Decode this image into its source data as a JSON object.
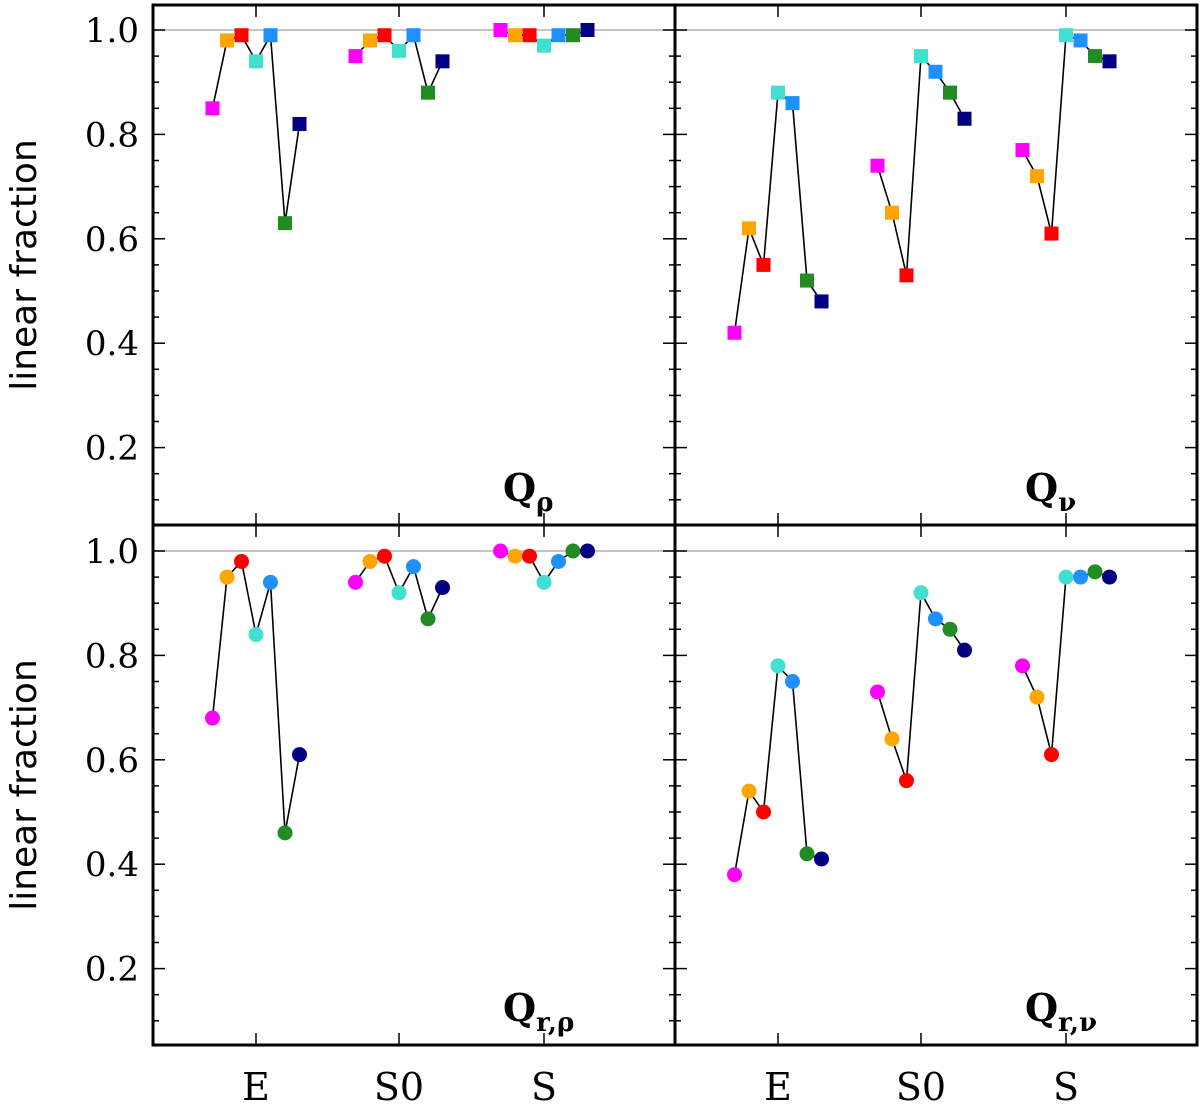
{
  "chart_data": [
    {
      "type": "scatter",
      "panel": "top-left",
      "label_main": "Q",
      "label_sub": "ρ",
      "ylabel": "linear fraction",
      "ylim": [
        0.05,
        1.05
      ],
      "yticks": [
        "0.2",
        "0.4",
        "0.6",
        "0.8",
        "1.0"
      ],
      "reference_line": 1.0,
      "categories": [
        "E",
        "S0",
        "S"
      ],
      "marker": "square",
      "series": [
        {
          "name": "E",
          "values": [
            0.85,
            0.98,
            0.99,
            0.94,
            0.99,
            0.63,
            0.82
          ]
        },
        {
          "name": "S0",
          "values": [
            0.95,
            0.98,
            0.99,
            0.96,
            0.99,
            0.88,
            0.94
          ]
        },
        {
          "name": "S",
          "values": [
            1.0,
            0.99,
            0.99,
            0.97,
            0.99,
            0.99,
            1.0
          ]
        }
      ]
    },
    {
      "type": "scatter",
      "panel": "top-right",
      "label_main": "Q",
      "label_sub": "ν",
      "ylim": [
        0.05,
        1.05
      ],
      "reference_line": 1.0,
      "categories": [
        "E",
        "S0",
        "S"
      ],
      "marker": "square",
      "series": [
        {
          "name": "E",
          "values": [
            0.42,
            0.62,
            0.55,
            0.88,
            0.86,
            0.52,
            0.48
          ]
        },
        {
          "name": "S0",
          "values": [
            0.74,
            0.65,
            0.53,
            0.95,
            0.92,
            0.88,
            0.83
          ]
        },
        {
          "name": "S",
          "values": [
            0.77,
            0.72,
            0.61,
            0.99,
            0.98,
            0.95,
            0.94
          ]
        }
      ]
    },
    {
      "type": "scatter",
      "panel": "bottom-left",
      "label_main": "Q",
      "label_sub": "r,ρ",
      "ylabel": "linear fraction",
      "ylim": [
        0.05,
        1.05
      ],
      "yticks": [
        "0.2",
        "0.4",
        "0.6",
        "0.8",
        "1.0"
      ],
      "reference_line": 1.0,
      "categories": [
        "E",
        "S0",
        "S"
      ],
      "marker": "circle",
      "series": [
        {
          "name": "E",
          "values": [
            0.68,
            0.95,
            0.98,
            0.84,
            0.94,
            0.46,
            0.61
          ]
        },
        {
          "name": "S0",
          "values": [
            0.94,
            0.98,
            0.99,
            0.92,
            0.97,
            0.87,
            0.93
          ]
        },
        {
          "name": "S",
          "values": [
            1.0,
            0.99,
            0.99,
            0.94,
            0.98,
            1.0,
            1.0
          ]
        }
      ]
    },
    {
      "type": "scatter",
      "panel": "bottom-right",
      "label_main": "Q",
      "label_sub": "r,ν",
      "ylim": [
        0.05,
        1.05
      ],
      "reference_line": 1.0,
      "categories": [
        "E",
        "S0",
        "S"
      ],
      "marker": "circle",
      "series": [
        {
          "name": "E",
          "values": [
            0.38,
            0.54,
            0.5,
            0.78,
            0.75,
            0.42,
            0.41
          ]
        },
        {
          "name": "S0",
          "values": [
            0.73,
            0.64,
            0.56,
            0.92,
            0.87,
            0.85,
            0.81
          ]
        },
        {
          "name": "S",
          "values": [
            0.78,
            0.72,
            0.61,
            0.95,
            0.95,
            0.96,
            0.95
          ]
        }
      ]
    }
  ],
  "point_colors": [
    "#ff00ff",
    "#ffa500",
    "#ff0000",
    "#40e0d0",
    "#1e90ff",
    "#228b22",
    "#000080"
  ],
  "axis_color": "#000000",
  "reference_line_color": "#b0b0b0"
}
